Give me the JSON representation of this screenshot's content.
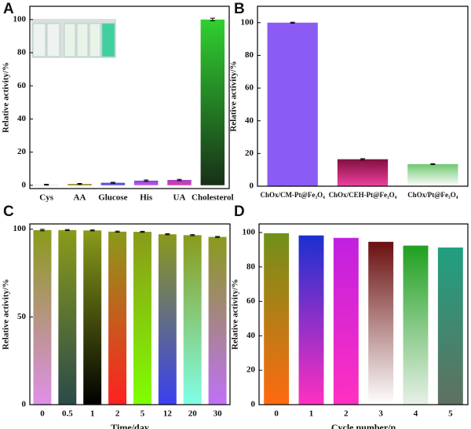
{
  "chart_data": [
    {
      "type": "bar",
      "label": "A",
      "y_label": "Relative activity/%",
      "categories": [
        "Cys",
        "AA",
        "Glucose",
        "His",
        "UA",
        "Cholesterol"
      ],
      "values": [
        0.3,
        0.8,
        1.5,
        2.8,
        3.2,
        100
      ],
      "errors": [
        0.3,
        0.3,
        0.3,
        0.4,
        0.4,
        0.8
      ],
      "colors": [
        [
          "#c8c8c8",
          "#f4f4f4"
        ],
        [
          "#b0a040",
          "#7a6a20"
        ],
        [
          "#3a5ad8",
          "#7a50d8"
        ],
        [
          "#8a40e0",
          "#c060e0"
        ],
        [
          "#a040d0",
          "#e040a0"
        ],
        [
          "#30d030",
          "#183018"
        ]
      ],
      "ylim": [
        -2,
        108
      ],
      "yticks": [
        0,
        20,
        40,
        60,
        80,
        100
      ]
    },
    {
      "type": "bar",
      "label": "B",
      "y_label": "Relative activity/%",
      "categories": [
        "ChOx/CM-Pt@Fe₃O₄",
        "ChOx/CEH-Pt@Fe₃O₄",
        "ChOx/Pt@Fe₃O₄"
      ],
      "values": [
        100,
        16.5,
        13.5
      ],
      "errors": [
        0.3,
        0.4,
        0.3
      ],
      "colors": [
        [
          "#8a5cf5",
          "#8a5cf5"
        ],
        [
          "#801040",
          "#f040a0"
        ],
        [
          "#70c870",
          "#ffffff"
        ]
      ],
      "ylim": [
        0,
        110
      ],
      "yticks": [
        0,
        20,
        40,
        60,
        80,
        100
      ]
    },
    {
      "type": "bar",
      "label": "C",
      "y_label": "Relative activity/%",
      "x_label": "Time/day",
      "categories": [
        "0",
        "0.5",
        "1",
        "2",
        "5",
        "12",
        "20",
        "30"
      ],
      "values": [
        99.5,
        99.5,
        99.3,
        98.6,
        98.5,
        97.1,
        96.6,
        95.6
      ],
      "errors": [
        0.4,
        0.3,
        0.3,
        0.3,
        0.3,
        0.3,
        0.3,
        0.3
      ],
      "colors": [
        [
          "#8a9a1a",
          "#e090e8"
        ],
        [
          "#8a9a1a",
          "#2a4a4a"
        ],
        [
          "#8a9a1a",
          "#000000"
        ],
        [
          "#8a9a1a",
          "#ff2020"
        ],
        [
          "#8a9a1a",
          "#80ff00"
        ],
        [
          "#8a9a1a",
          "#3a40f0"
        ],
        [
          "#8a9a1a",
          "#80ffe8"
        ],
        [
          "#8a9a1a",
          "#c070f8"
        ]
      ],
      "ylim": [
        0,
        103
      ],
      "yticks": [
        0,
        50,
        100
      ]
    },
    {
      "type": "bar",
      "label": "D",
      "y_label": "Relative activity/%",
      "x_label": "Cycle number/n",
      "categories": [
        "0",
        "1",
        "2",
        "3",
        "4",
        "5"
      ],
      "values": [
        99.6,
        98.3,
        96.9,
        94.6,
        92.4,
        91.3
      ],
      "colors": [
        [
          "#70901a",
          "#ff6a10"
        ],
        [
          "#1a30d0",
          "#ff30c0"
        ],
        [
          "#c020e0",
          "#ff30c0"
        ],
        [
          "#6a1010",
          "#ffffff"
        ],
        [
          "#20a020",
          "#e8f0e8"
        ],
        [
          "#20a080",
          "#607060"
        ]
      ],
      "ylim": [
        0,
        105
      ],
      "yticks": [
        0,
        20,
        40,
        60,
        80,
        100
      ]
    }
  ]
}
